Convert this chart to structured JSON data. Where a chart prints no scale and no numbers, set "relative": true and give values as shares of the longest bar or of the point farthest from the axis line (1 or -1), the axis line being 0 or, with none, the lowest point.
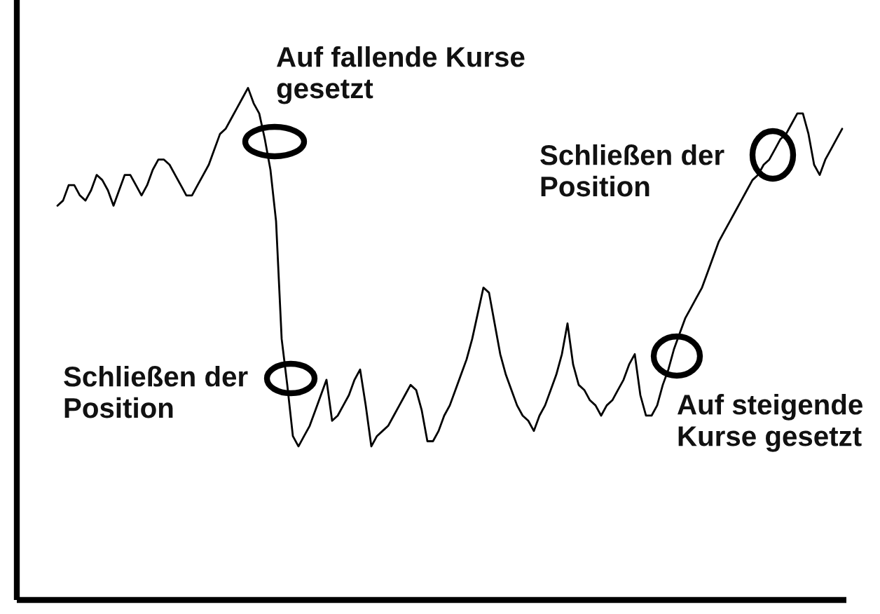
{
  "chart_data": {
    "type": "line",
    "relative": true,
    "categories": [
      null,
      null,
      null,
      null,
      null,
      null,
      null,
      null,
      null,
      null,
      null,
      null,
      null,
      null,
      null,
      null,
      null,
      null,
      null,
      null,
      null,
      null,
      null,
      null,
      null,
      null,
      null,
      null,
      null,
      null,
      null,
      null,
      null,
      null,
      null,
      null,
      null,
      null,
      null,
      null,
      null,
      null,
      null,
      null,
      null,
      null,
      null,
      null,
      null,
      null,
      null,
      null,
      null,
      null,
      null,
      null,
      null,
      null,
      null,
      null,
      null,
      null,
      null,
      null,
      null,
      null,
      null,
      null,
      null,
      null,
      null,
      null,
      null,
      null,
      null,
      null,
      null,
      null,
      null,
      null,
      null,
      null,
      null,
      null,
      null,
      null,
      null,
      null,
      null,
      null,
      null,
      null,
      null,
      null,
      null,
      null,
      null,
      null,
      null,
      null,
      null,
      null,
      null,
      null,
      null,
      null,
      null,
      null,
      null,
      null,
      null,
      null,
      null,
      null,
      null,
      null,
      null,
      null,
      null,
      null,
      null,
      null,
      null,
      null,
      null,
      null,
      null,
      null,
      null,
      null,
      null,
      null,
      null,
      null,
      null,
      null,
      null,
      null,
      null,
      null,
      null
    ],
    "series": [
      {
        "color": "#000000",
        "values": [
          0.77,
          0.78,
          0.81,
          0.81,
          0.79,
          0.78,
          0.8,
          0.83,
          0.82,
          0.8,
          0.77,
          0.8,
          0.83,
          0.83,
          0.81,
          0.79,
          0.81,
          0.84,
          0.86,
          0.86,
          0.85,
          0.83,
          0.81,
          0.79,
          0.79,
          0.81,
          0.83,
          0.85,
          0.88,
          0.91,
          0.92,
          0.94,
          0.96,
          0.98,
          1.0,
          0.97,
          0.95,
          0.9,
          0.84,
          0.74,
          0.51,
          0.42,
          0.32,
          0.3,
          0.32,
          0.34,
          0.37,
          0.4,
          0.43,
          0.35,
          0.36,
          0.38,
          0.4,
          0.43,
          0.45,
          0.38,
          0.3,
          0.32,
          0.33,
          0.34,
          0.36,
          0.38,
          0.4,
          0.42,
          0.41,
          0.37,
          0.31,
          0.31,
          0.33,
          0.36,
          0.38,
          0.41,
          0.44,
          0.47,
          0.51,
          0.56,
          0.61,
          0.6,
          0.54,
          0.48,
          0.44,
          0.41,
          0.38,
          0.36,
          0.35,
          0.33,
          0.36,
          0.38,
          0.41,
          0.44,
          0.48,
          0.54,
          0.46,
          0.42,
          0.41,
          0.39,
          0.38,
          0.36,
          0.38,
          0.39,
          0.41,
          0.43,
          0.46,
          0.48,
          0.4,
          0.36,
          0.36,
          0.38,
          0.42,
          0.45,
          0.49,
          0.52,
          0.55,
          0.57,
          0.59,
          0.61,
          0.64,
          0.67,
          0.7,
          0.72,
          0.74,
          0.76,
          0.78,
          0.8,
          0.82,
          0.83,
          0.85,
          0.86,
          0.88,
          0.9,
          0.91,
          0.93,
          0.95,
          0.95,
          0.91,
          0.85,
          0.83,
          0.86,
          0.88,
          0.9,
          0.92
        ]
      }
    ],
    "annotations": [
      "Auf fallende Kurse\ngesetzt",
      "Schließen der\nPosition",
      "Schließen der\nPosition",
      "Auf steigende\nKurse gesetzt"
    ]
  }
}
